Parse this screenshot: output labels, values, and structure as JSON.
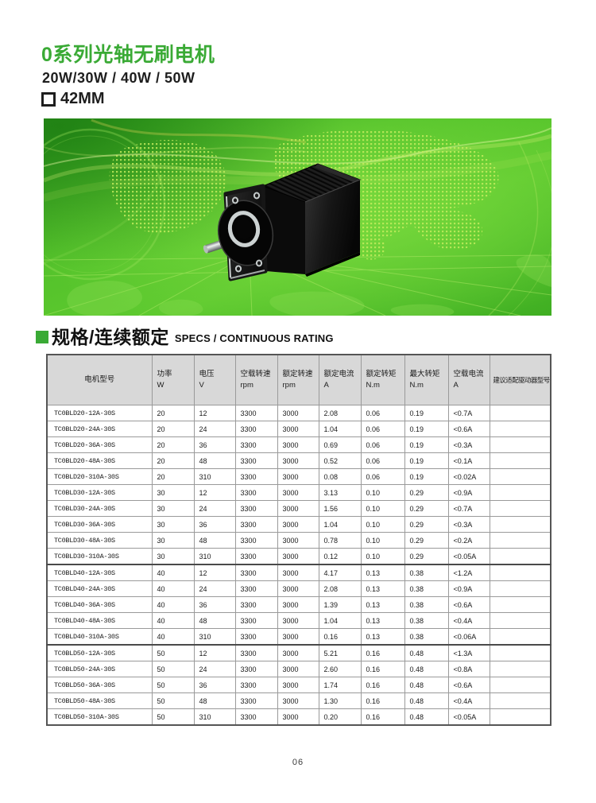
{
  "colors": {
    "accent_green": "#3aaa35",
    "banner_green_bright": "#5cc72e",
    "banner_green_dark": "#2e9a1d",
    "table_header_bg": "#d8d8d8"
  },
  "header": {
    "title": "0系列光轴无刷电机",
    "subtitle_watts": "20W/30W / 40W / 50W",
    "frame_size": "42MM"
  },
  "section": {
    "title_zh": "规格/连续额定",
    "title_en": "SPECS / CONTINUOUS RATING"
  },
  "table": {
    "columns": [
      {
        "label": "电机型号",
        "unit": ""
      },
      {
        "label": "功率",
        "unit": "W"
      },
      {
        "label": "电压",
        "unit": "V"
      },
      {
        "label": "空载转速",
        "unit": "rpm"
      },
      {
        "label": "额定转速",
        "unit": "rpm"
      },
      {
        "label": "额定电流",
        "unit": "A"
      },
      {
        "label": "额定转矩",
        "unit": "N.m"
      },
      {
        "label": "最大转矩",
        "unit": "N.m"
      },
      {
        "label": "空载电流",
        "unit": "A"
      },
      {
        "label": "建议适配驱动器型号",
        "unit": ""
      }
    ],
    "rows": [
      [
        "TC0BLD20-12A-30S",
        "20",
        "12",
        "3300",
        "3000",
        "2.08",
        "0.06",
        "0.19",
        "<0.7A",
        ""
      ],
      [
        "TC0BLD20-24A-30S",
        "20",
        "24",
        "3300",
        "3000",
        "1.04",
        "0.06",
        "0.19",
        "<0.6A",
        ""
      ],
      [
        "TC0BLD20-36A-30S",
        "20",
        "36",
        "3300",
        "3000",
        "0.69",
        "0.06",
        "0.19",
        "<0.3A",
        ""
      ],
      [
        "TC0BLD20-48A-30S",
        "20",
        "48",
        "3300",
        "3000",
        "0.52",
        "0.06",
        "0.19",
        "<0.1A",
        ""
      ],
      [
        "TC0BLD20-310A-30S",
        "20",
        "310",
        "3300",
        "3000",
        "0.08",
        "0.06",
        "0.19",
        "<0.02A",
        ""
      ],
      [
        "TC0BLD30-12A-30S",
        "30",
        "12",
        "3300",
        "3000",
        "3.13",
        "0.10",
        "0.29",
        "<0.9A",
        ""
      ],
      [
        "TC0BLD30-24A-30S",
        "30",
        "24",
        "3300",
        "3000",
        "1.56",
        "0.10",
        "0.29",
        "<0.7A",
        ""
      ],
      [
        "TC0BLD30-36A-30S",
        "30",
        "36",
        "3300",
        "3000",
        "1.04",
        "0.10",
        "0.29",
        "<0.3A",
        ""
      ],
      [
        "TC0BLD30-48A-30S",
        "30",
        "48",
        "3300",
        "3000",
        "0.78",
        "0.10",
        "0.29",
        "<0.2A",
        ""
      ],
      [
        "TC0BLD30-310A-30S",
        "30",
        "310",
        "3300",
        "3000",
        "0.12",
        "0.10",
        "0.29",
        "<0.05A",
        ""
      ],
      [
        "TC0BLD40-12A-30S",
        "40",
        "12",
        "3300",
        "3000",
        "4.17",
        "0.13",
        "0.38",
        "<1.2A",
        ""
      ],
      [
        "TC0BLD40-24A-30S",
        "40",
        "24",
        "3300",
        "3000",
        "2.08",
        "0.13",
        "0.38",
        "<0.9A",
        ""
      ],
      [
        "TC0BLD40-36A-30S",
        "40",
        "36",
        "3300",
        "3000",
        "1.39",
        "0.13",
        "0.38",
        "<0.6A",
        ""
      ],
      [
        "TC0BLD40-48A-30S",
        "40",
        "48",
        "3300",
        "3000",
        "1.04",
        "0.13",
        "0.38",
        "<0.4A",
        ""
      ],
      [
        "TC0BLD40-310A-30S",
        "40",
        "310",
        "3300",
        "3000",
        "0.16",
        "0.13",
        "0.38",
        "<0.06A",
        ""
      ],
      [
        "TC0BLD50-12A-30S",
        "50",
        "12",
        "3300",
        "3000",
        "5.21",
        "0.16",
        "0.48",
        "<1.3A",
        ""
      ],
      [
        "TC0BLD50-24A-30S",
        "50",
        "24",
        "3300",
        "3000",
        "2.60",
        "0.16",
        "0.48",
        "<0.8A",
        ""
      ],
      [
        "TC0BLD50-36A-30S",
        "50",
        "36",
        "3300",
        "3000",
        "1.74",
        "0.16",
        "0.48",
        "<0.6A",
        ""
      ],
      [
        "TC0BLD50-48A-30S",
        "50",
        "48",
        "3300",
        "3000",
        "1.30",
        "0.16",
        "0.48",
        "<0.4A",
        ""
      ],
      [
        "TC0BLD50-310A-30S",
        "50",
        "310",
        "3300",
        "3000",
        "0.20",
        "0.16",
        "0.48",
        "<0.05A",
        ""
      ]
    ]
  },
  "footer": {
    "page_number": "06"
  }
}
